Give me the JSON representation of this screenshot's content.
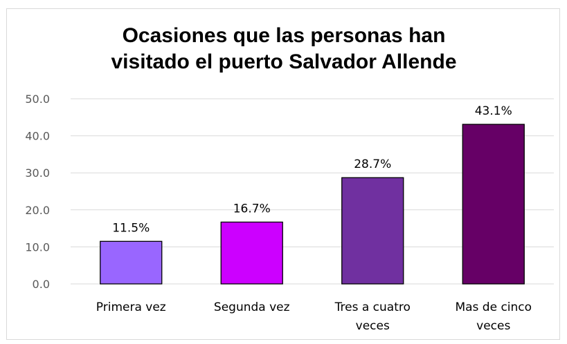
{
  "chart_data": {
    "type": "bar",
    "title_lines": [
      "Ocasiones que las personas han",
      "visitado el puerto Salvador Allende"
    ],
    "categories": [
      [
        "Primera vez"
      ],
      [
        "Segunda vez"
      ],
      [
        "Tres a cuatro",
        "veces"
      ],
      [
        "Mas de cinco",
        "veces"
      ]
    ],
    "values": [
      11.5,
      16.7,
      28.7,
      43.1
    ],
    "value_labels": [
      "11.5%",
      "16.7%",
      "28.7%",
      "43.1%"
    ],
    "colors": [
      "#9966ff",
      "#cc00ff",
      "#7030a0",
      "#660066"
    ],
    "y_ticks": [
      "0.0",
      "10.0",
      "20.0",
      "30.0",
      "40.0",
      "50.0"
    ],
    "ylim": [
      0,
      50
    ],
    "grid": true,
    "legend": "none"
  }
}
